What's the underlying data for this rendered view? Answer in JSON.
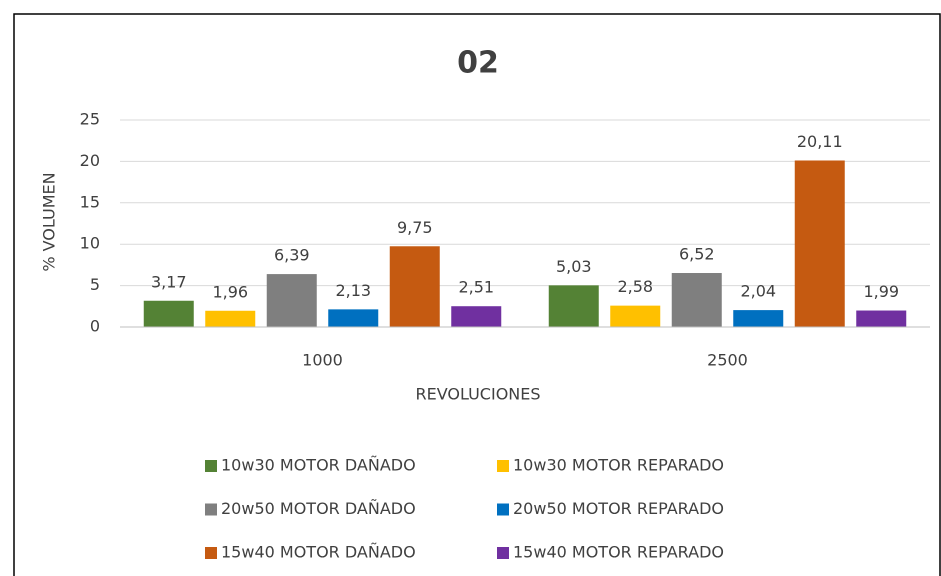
{
  "chart_data": {
    "type": "bar",
    "title": "02",
    "x_label": "REVOLUCIONES",
    "y_label": "% VOLUMEN",
    "categories": [
      "1000",
      "2500"
    ],
    "series": [
      {
        "name": "10w30 MOTOR DAÑADO",
        "color": "#548235",
        "values": [
          3.17,
          5.03
        ],
        "value_labels": [
          "3,17",
          "5,03"
        ]
      },
      {
        "name": "10w30 MOTOR REPARADO",
        "color": "#ffc000",
        "values": [
          1.96,
          2.58
        ],
        "value_labels": [
          "1,96",
          "2,58"
        ]
      },
      {
        "name": "20w50 MOTOR DAÑADO",
        "color": "#7f7f7f",
        "values": [
          6.39,
          6.52
        ],
        "value_labels": [
          "6,39",
          "6,52"
        ]
      },
      {
        "name": "20w50 MOTOR REPARADO",
        "color": "#0070c0",
        "values": [
          2.13,
          2.04
        ],
        "value_labels": [
          "2,13",
          "2,04"
        ]
      },
      {
        "name": "15w40 MOTOR DAÑADO",
        "color": "#c55a11",
        "values": [
          9.75,
          20.11
        ],
        "value_labels": [
          "9,75",
          "20,11"
        ]
      },
      {
        "name": "15w40 MOTOR REPARADO",
        "color": "#7030a0",
        "values": [
          2.51,
          1.99
        ],
        "value_labels": [
          "2,51",
          "1,99"
        ]
      }
    ],
    "ylim": [
      0,
      25
    ],
    "yticks": [
      0,
      5,
      10,
      15,
      20,
      25
    ],
    "grid": true,
    "legend": "bottom"
  }
}
